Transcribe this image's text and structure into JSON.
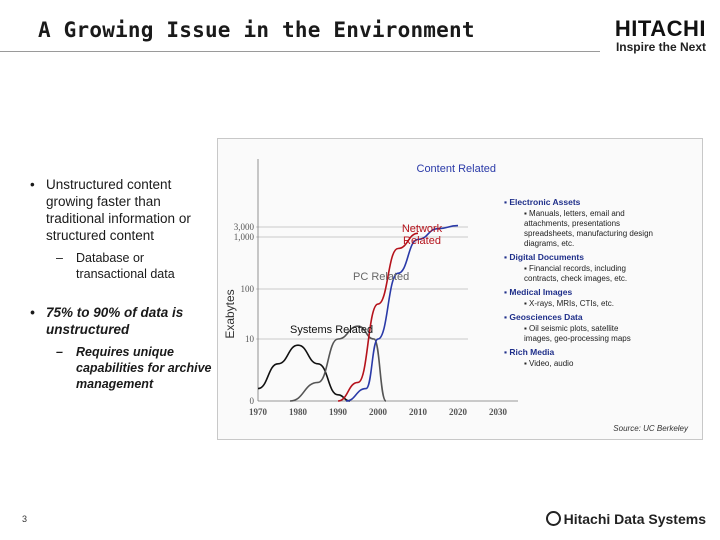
{
  "slide": {
    "title": "A Growing Issue in the Environment",
    "brand_name": "HITACHI",
    "brand_tagline": "Inspire the Next",
    "page_number": "3",
    "footer_brand": "Hitachi Data Systems"
  },
  "bullets": [
    {
      "text": "Unstructured content growing faster than traditional information or structured content",
      "sub": "Database or transactional data"
    },
    {
      "text": "75% to 90% of data is unstructured",
      "sub": "Requires unique capabilities for archive management"
    }
  ],
  "chart_data": {
    "type": "line",
    "ylabel": "Exabytes",
    "y_ticks": [
      "0",
      "10",
      "100",
      "1,000",
      "3,000"
    ],
    "x_ticks": [
      "1970",
      "1980",
      "1990",
      "2000",
      "2010",
      "2020",
      "2030"
    ],
    "series": [
      {
        "name": "Systems Related",
        "color": "#111111",
        "points": [
          [
            1970,
            2
          ],
          [
            1975,
            6
          ],
          [
            1980,
            9
          ],
          [
            1985,
            6
          ],
          [
            1990,
            1
          ],
          [
            1993,
            0
          ]
        ]
      },
      {
        "name": "PC Related",
        "color": "#555555",
        "points": [
          [
            1978,
            0
          ],
          [
            1985,
            3
          ],
          [
            1990,
            10
          ],
          [
            1995,
            18
          ],
          [
            1999,
            10
          ],
          [
            2002,
            0
          ]
        ]
      },
      {
        "name": "Network Related",
        "color": "#b5121b",
        "points": [
          [
            1990,
            0
          ],
          [
            1995,
            3
          ],
          [
            2000,
            50
          ],
          [
            2005,
            600
          ],
          [
            2010,
            1500
          ]
        ]
      },
      {
        "name": "Content Related",
        "color": "#2a3aa8",
        "points": [
          [
            1992,
            0
          ],
          [
            1997,
            2
          ],
          [
            2000,
            10
          ],
          [
            2005,
            200
          ],
          [
            2010,
            900
          ],
          [
            2015,
            2500
          ],
          [
            2020,
            3500
          ]
        ]
      }
    ],
    "annotations": [
      {
        "heading": "Electronic Assets",
        "items": [
          "Manuals, letters, email and attachments, presentations spreadsheets, manufacturing design diagrams, etc."
        ]
      },
      {
        "heading": "Digital Documents",
        "items": [
          "Financial records, including contracts, check images, etc."
        ]
      },
      {
        "heading": "Medical Images",
        "items": [
          "X-rays, MRIs, CTIs, etc."
        ]
      },
      {
        "heading": "Geosciences Data",
        "items": [
          "Oil seismic plots, satellite images, geo-processing maps"
        ]
      },
      {
        "heading": "Rich Media",
        "items": [
          "Video, audio"
        ]
      }
    ],
    "source": "Source: UC Berkeley",
    "colors": {
      "systems": "#111111",
      "pc": "#555555",
      "network": "#b5121b",
      "content": "#2a3aa8"
    }
  }
}
